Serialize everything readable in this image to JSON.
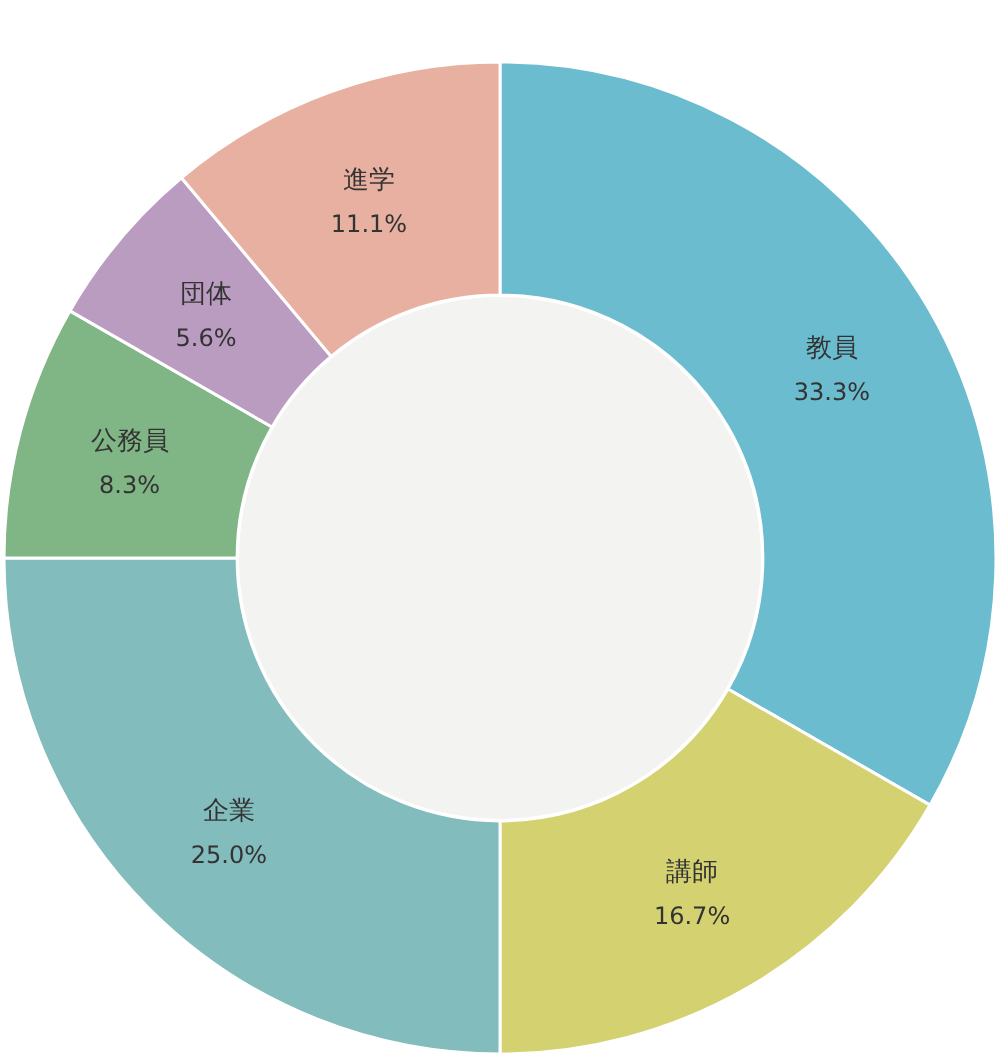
{
  "chart_data": {
    "type": "donut",
    "categories": [
      "教員",
      "講師",
      "企業",
      "公務員",
      "団体",
      "進学"
    ],
    "values": [
      33.3,
      16.7,
      25.0,
      8.3,
      5.6,
      11.1
    ],
    "colors": [
      "#6bbccf",
      "#d4d170",
      "#82bcbc",
      "#80b585",
      "#bb9cc1",
      "#e8b0a0"
    ],
    "value_labels": [
      "33.3%",
      "16.7%",
      "25.0%",
      "8.3%",
      "5.6%",
      "11.1%"
    ]
  }
}
